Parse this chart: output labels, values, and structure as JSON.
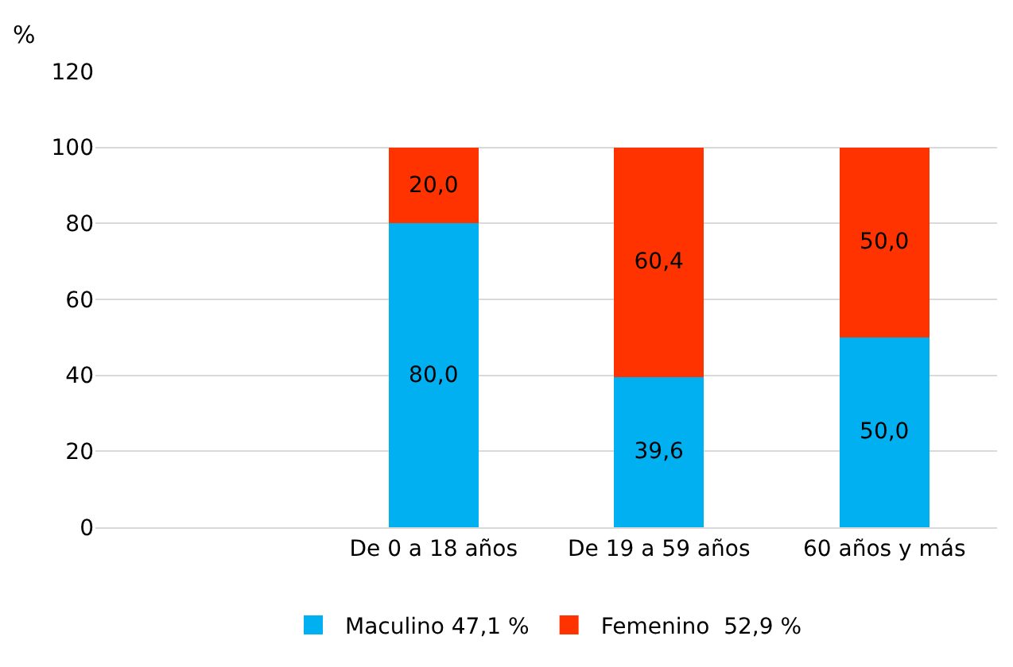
{
  "chart_data": {
    "type": "bar",
    "stacked": true,
    "ylabel": "%",
    "categories": [
      null,
      "De 0 a 18 años",
      "De 19 a 59 años",
      "60 años y más"
    ],
    "series": [
      {
        "name": "Maculino 47,1 %",
        "color": "#00b0f0",
        "values": [
          null,
          80.0,
          39.6,
          50.0
        ],
        "value_labels": [
          null,
          "80,0",
          "39,6",
          "50,0"
        ]
      },
      {
        "name": "Femenino  52,9 %",
        "color": "#ff3300",
        "values": [
          null,
          20.0,
          60.4,
          50.0
        ],
        "value_labels": [
          null,
          "20,0",
          "60,4",
          "50,0"
        ]
      }
    ],
    "ylim": [
      0,
      120
    ],
    "yticks": [
      0,
      20,
      40,
      60,
      80,
      100,
      120
    ],
    "grid": "y",
    "legend": "bottom"
  }
}
